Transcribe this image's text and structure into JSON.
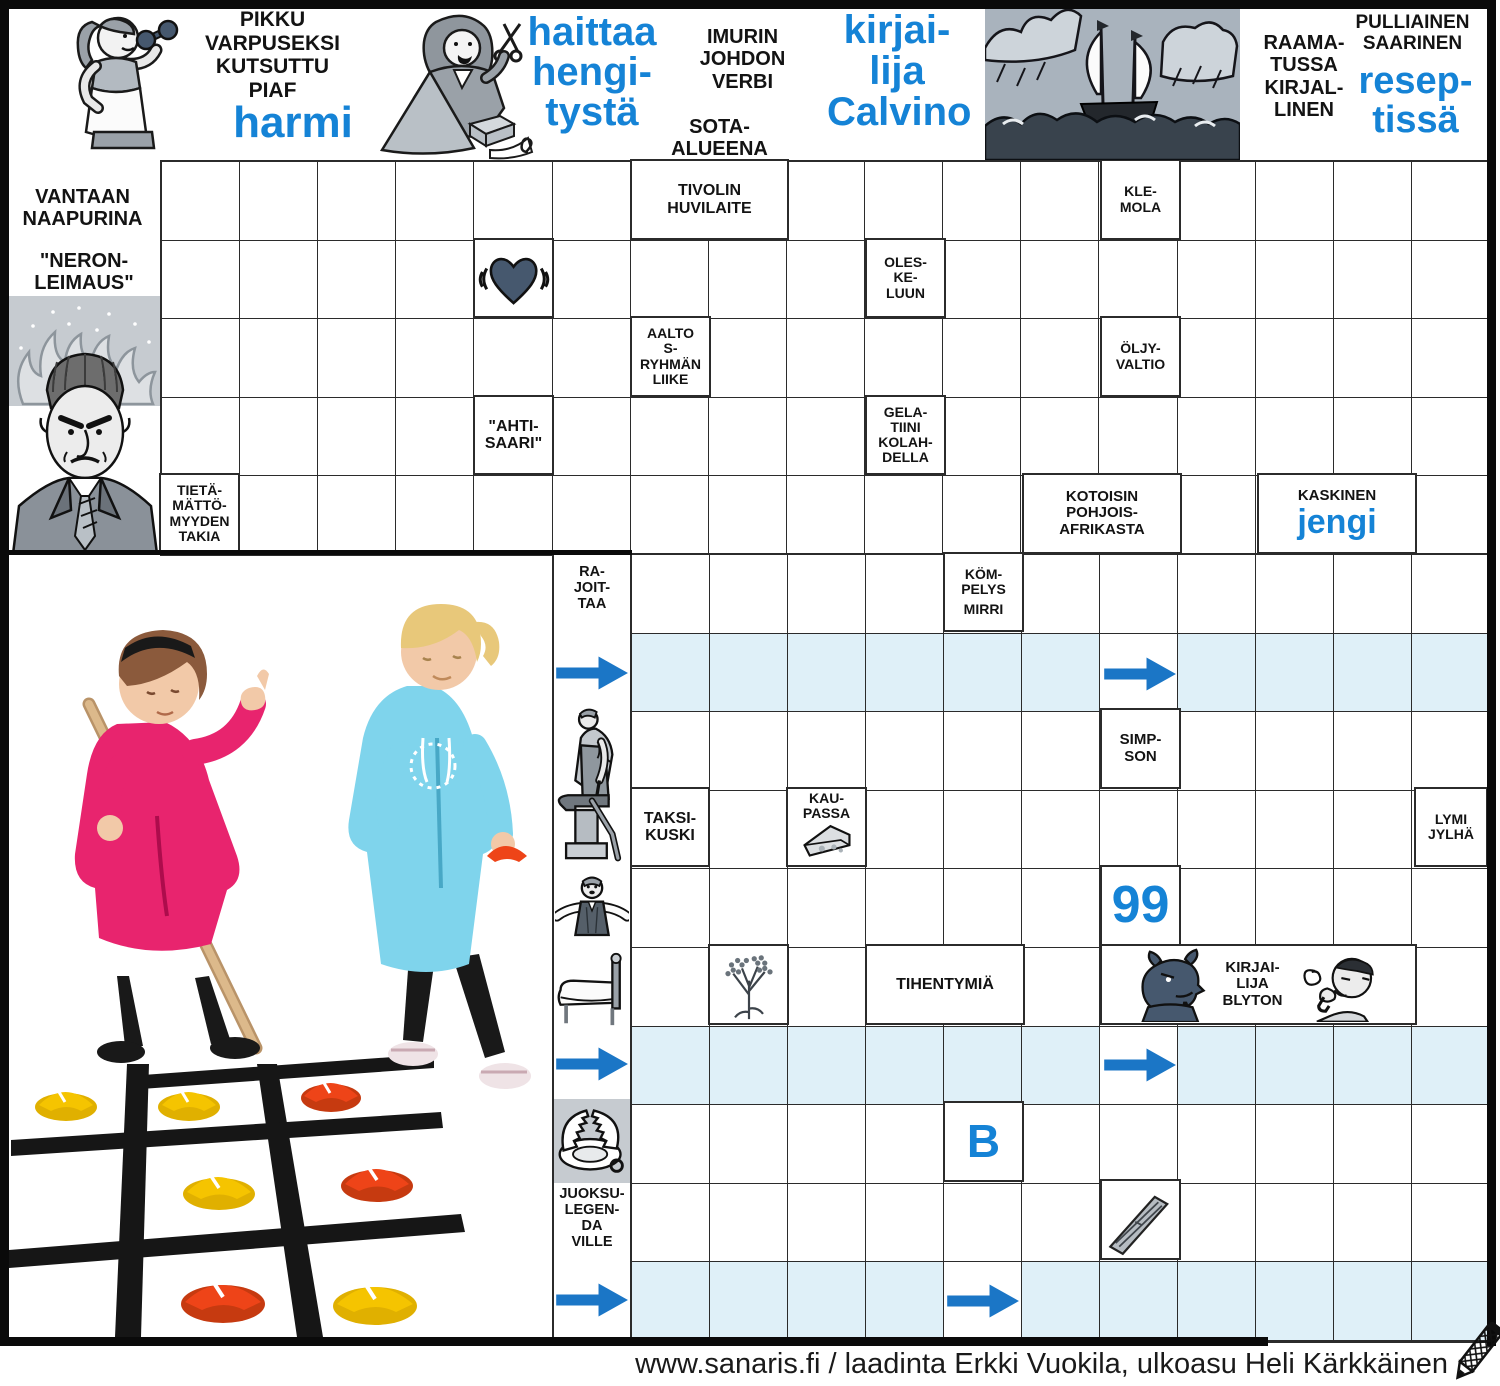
{
  "title": "sanaris.fi sanaristikko",
  "colors": {
    "accent_text_blue": "#1583d6",
    "arrow_blue": "#1b76c6",
    "highlight_row": "#dff0f8",
    "illustration_slate": "#46586e",
    "grid_line": "#2b2b2b",
    "cone_yellow": "#f5c400",
    "cone_red": "#ee4418",
    "hoodie_pink": "#e8246e",
    "hoodie_turquoise": "#7fd4ec"
  },
  "top": {
    "pikku": "PIKKU\nVARPUSEKSI\nKUTSUTTU\nPIAF",
    "harmi": "harmi",
    "haittaa": "haittaa\nhengi-\ntystä",
    "imurin": "IMURIN\nJOHDON\nVERBI",
    "sota": "SOTA-\nALUEENA",
    "calvino": "kirjai-\nlija\nCalvino",
    "raamatussa": "RAAMA-\nTUSSA\nKIRJAL-\nLINEN",
    "pulliainen": "PULLIAINEN\nSAARINEN",
    "reseptissa": "resep-\ntissä"
  },
  "left": {
    "vantaan": "VANTAAN\nNAAPURINA",
    "neron": "\"NERON-\nLEIMAUS\""
  },
  "cells": {
    "tivolin": "TIVOLIN\nHUVILAITE",
    "klemola": "KLE-\nMOLA",
    "oleskeluun": "OLES-\nKE-\nLUUN",
    "aalto": "AALTO\nS-\nRYHMÄN\nLIIKE",
    "oljyvaltio": "ÖLJY-\nVALTIO",
    "ahtisaari": "\"AHTI-\nSAARI\"",
    "gelatiini": "GELA-\nTIINI\nKOLAH-\nDELLA",
    "tietamattomyyden": "TIETÄ-\nMÄTTÖ-\nMYYDEN\nTAKIA",
    "kotoisin": "KOTOISIN\nPOHJOIS-\nAFRIKASTA",
    "kaskinen": "KASKINEN",
    "jengi": "jengi",
    "kompelys": "KÖM-\nPELYS",
    "mirri": "MIRRI",
    "simpson": "SIMP-\nSON",
    "taksikuski": "TAKSI-\nKUSKI",
    "kaupassa": "KAU-\nPASSA",
    "lymijylha": "LYMI\nJYLHÄ",
    "ninetynine": "99",
    "tihentymia": "TIHENTYMIÄ",
    "blyton": "KIRJAI-\nLIJA\nBLYTON",
    "b": "B"
  },
  "column": {
    "rajoittaa": "RA-\nJOIT-\nTAA",
    "juoksu": "JUOKSU-\nLEGEN-\nDA\nVILLE"
  },
  "footer": {
    "credit": "www.sanaris.fi / laadinta Erkki Vuokila, ulkoasu Heli Kärkkäinen"
  },
  "grid_sections": [
    {
      "name": "top-grid",
      "cols": 17,
      "rows": 5,
      "blue_rows": [],
      "white_cells": []
    },
    {
      "name": "bottom-grid",
      "cols": 11,
      "rows": 10,
      "blue_rows": [
        1,
        6,
        9
      ],
      "white_cells": [
        [
          1,
          6
        ],
        [
          6,
          6
        ],
        [
          9,
          4
        ]
      ]
    }
  ]
}
